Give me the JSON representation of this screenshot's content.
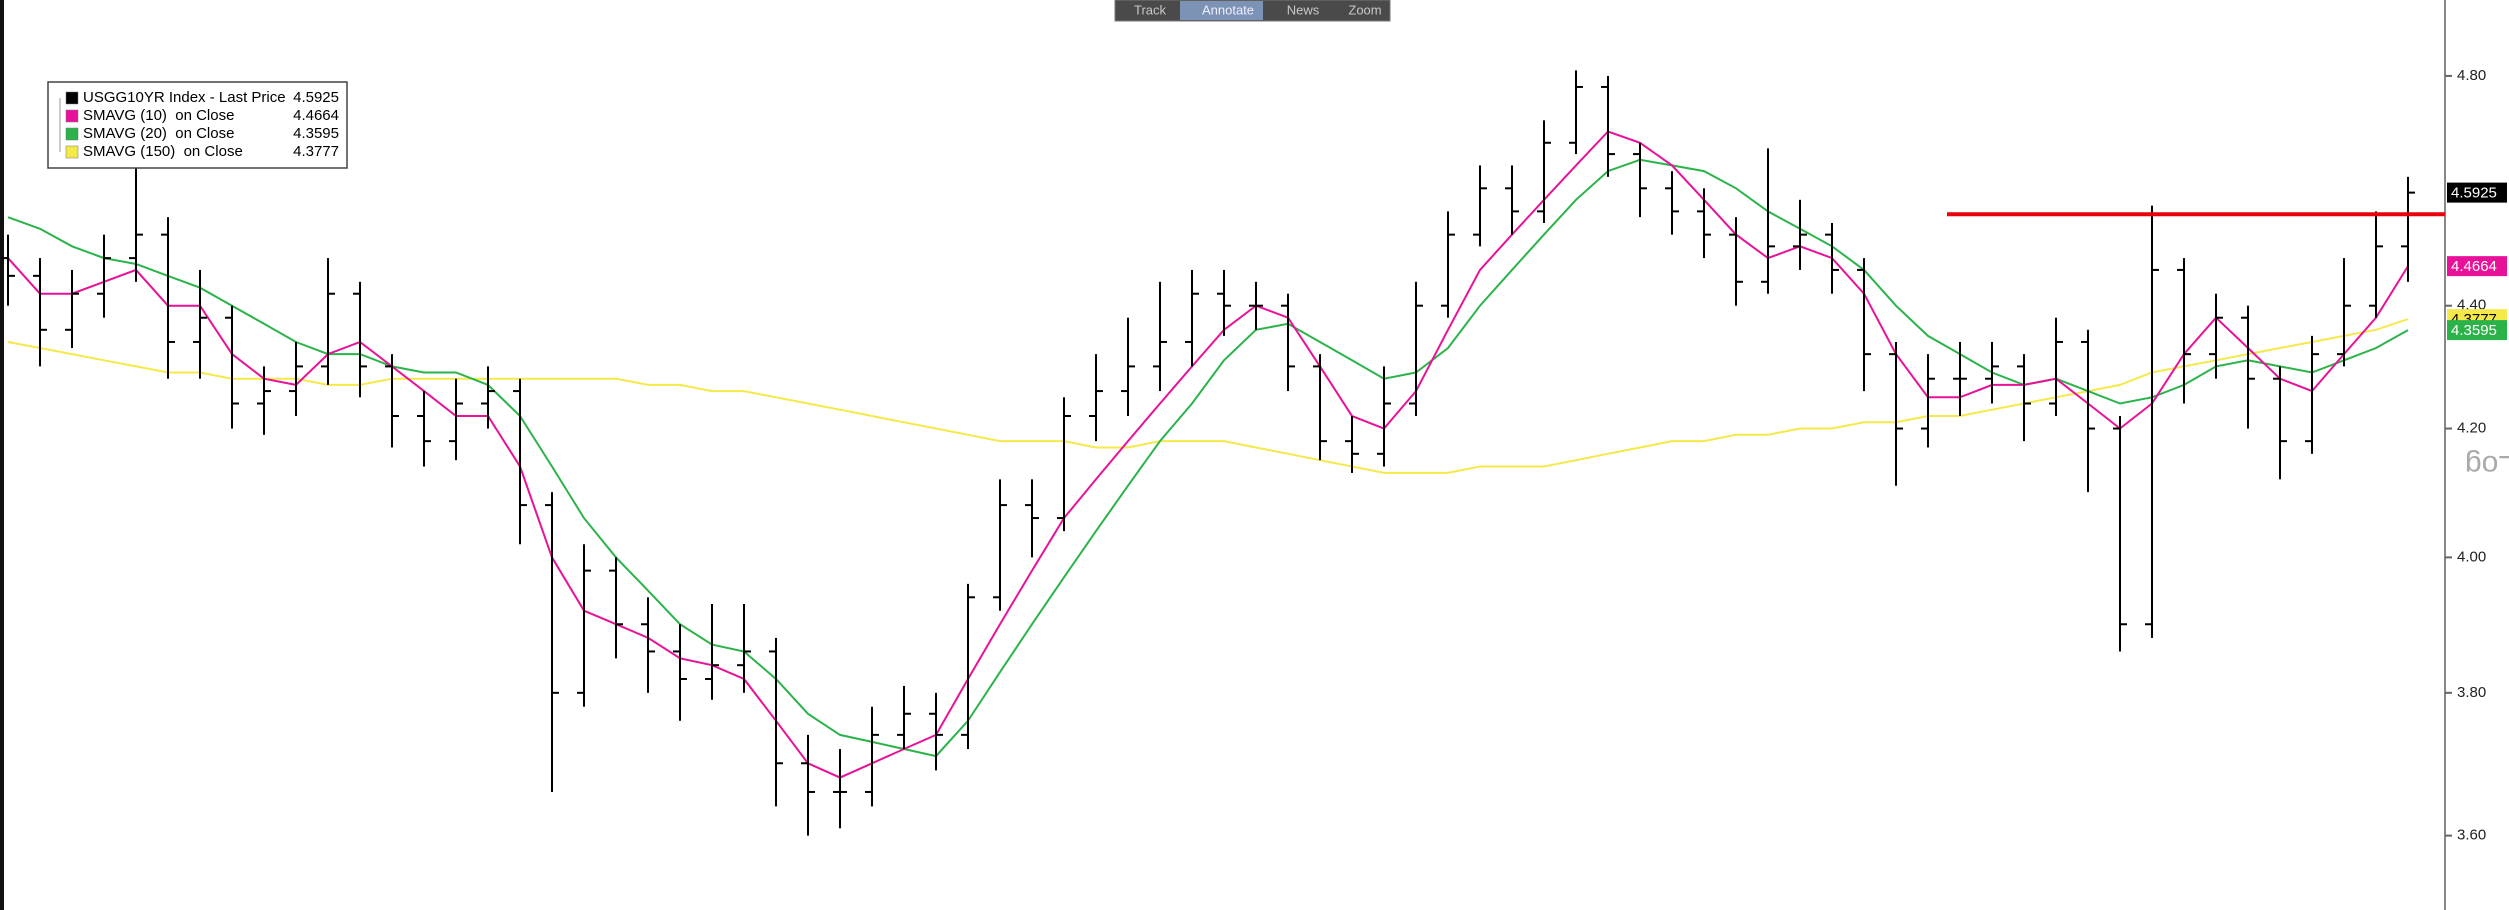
{
  "chart_data": {
    "type": "ohlc",
    "log_scale": true,
    "y_axis_title": "Log",
    "legend_position": "upper left",
    "toolbar": [
      "Track",
      "Annotate",
      "News",
      "Zoom"
    ],
    "ylim": [
      3.5,
      4.94
    ],
    "yticks": [
      {
        "value": 3.6,
        "label": "3.60"
      },
      {
        "value": 3.8,
        "label": "3.80"
      },
      {
        "value": 4.0,
        "label": "4.00"
      },
      {
        "value": 4.2,
        "label": "4.20"
      },
      {
        "value": 4.4,
        "label": "4.40"
      },
      {
        "value": 4.8,
        "label": "4.80"
      }
    ],
    "hline": {
      "value": 4.555,
      "color": "#e8000b"
    },
    "ohlc": {
      "name": "USGG10YR Index - Last Price",
      "color": "#000000",
      "last": 4.5925,
      "open": [
        4.48,
        4.45,
        4.36,
        4.42,
        4.48,
        4.52,
        4.34,
        4.38,
        4.24,
        4.26,
        4.3,
        4.42,
        4.3,
        4.22,
        4.18,
        4.24,
        4.26,
        4.08,
        3.8,
        3.98,
        3.9,
        3.86,
        3.82,
        3.84,
        3.86,
        3.7,
        3.66,
        3.66,
        3.74,
        3.77,
        3.74,
        3.94,
        4.08,
        4.06,
        4.22,
        4.26,
        4.3,
        4.34,
        4.42,
        4.4,
        4.4,
        4.3,
        4.18,
        4.16,
        4.24,
        4.4,
        4.52,
        4.6,
        4.56,
        4.68,
        4.78,
        4.66,
        4.6,
        4.56,
        4.52,
        4.44,
        4.5,
        4.52,
        4.46,
        4.32,
        4.2,
        4.28,
        4.28,
        4.3,
        4.24,
        4.34,
        4.2,
        3.9,
        4.46,
        4.32,
        4.38,
        4.28,
        4.18,
        4.32,
        4.4,
        4.5
      ],
      "high": [
        4.52,
        4.48,
        4.46,
        4.52,
        4.64,
        4.55,
        4.46,
        4.4,
        4.3,
        4.34,
        4.48,
        4.44,
        4.32,
        4.26,
        4.28,
        4.3,
        4.28,
        4.1,
        4.02,
        4.0,
        3.94,
        3.9,
        3.93,
        3.93,
        3.88,
        3.74,
        3.72,
        3.78,
        3.81,
        3.8,
        3.96,
        4.12,
        4.12,
        4.25,
        4.32,
        4.38,
        4.44,
        4.46,
        4.46,
        4.44,
        4.42,
        4.32,
        4.22,
        4.3,
        4.44,
        4.56,
        4.64,
        4.64,
        4.72,
        4.81,
        4.8,
        4.68,
        4.63,
        4.6,
        4.55,
        4.67,
        4.58,
        4.54,
        4.48,
        4.34,
        4.32,
        4.34,
        4.34,
        4.32,
        4.38,
        4.36,
        4.22,
        4.57,
        4.48,
        4.42,
        4.4,
        4.3,
        4.35,
        4.48,
        4.56,
        4.62
      ],
      "low": [
        4.4,
        4.3,
        4.33,
        4.38,
        4.44,
        4.28,
        4.28,
        4.2,
        4.19,
        4.22,
        4.27,
        4.25,
        4.17,
        4.14,
        4.15,
        4.2,
        4.02,
        3.66,
        3.78,
        3.85,
        3.8,
        3.76,
        3.79,
        3.8,
        3.64,
        3.6,
        3.61,
        3.64,
        3.72,
        3.69,
        3.72,
        3.92,
        4.0,
        4.04,
        4.18,
        4.22,
        4.26,
        4.3,
        4.35,
        4.36,
        4.26,
        4.15,
        4.13,
        4.14,
        4.22,
        4.38,
        4.5,
        4.52,
        4.54,
        4.66,
        4.62,
        4.55,
        4.52,
        4.48,
        4.4,
        4.42,
        4.46,
        4.42,
        4.26,
        4.11,
        4.17,
        4.22,
        4.24,
        4.18,
        4.22,
        4.1,
        3.86,
        3.88,
        4.24,
        4.28,
        4.2,
        4.12,
        4.16,
        4.3,
        4.38,
        4.44
      ],
      "close": [
        4.45,
        4.36,
        4.42,
        4.48,
        4.52,
        4.34,
        4.38,
        4.24,
        4.26,
        4.3,
        4.42,
        4.3,
        4.22,
        4.18,
        4.24,
        4.26,
        4.08,
        3.8,
        3.98,
        3.9,
        3.86,
        3.82,
        3.84,
        3.86,
        3.7,
        3.66,
        3.66,
        3.74,
        3.77,
        3.74,
        3.94,
        4.08,
        4.06,
        4.22,
        4.26,
        4.3,
        4.34,
        4.42,
        4.4,
        4.4,
        4.3,
        4.18,
        4.16,
        4.24,
        4.4,
        4.52,
        4.6,
        4.56,
        4.68,
        4.78,
        4.66,
        4.6,
        4.56,
        4.52,
        4.44,
        4.5,
        4.52,
        4.46,
        4.32,
        4.2,
        4.28,
        4.28,
        4.3,
        4.24,
        4.34,
        4.2,
        3.9,
        4.46,
        4.32,
        4.38,
        4.28,
        4.18,
        4.32,
        4.4,
        4.5,
        4.5925
      ]
    },
    "series": [
      {
        "name": "SMAVG (10)  on Close",
        "color": "#e8119a",
        "last": 4.4664,
        "values": [
          4.48,
          4.42,
          4.42,
          4.44,
          4.46,
          4.4,
          4.4,
          4.32,
          4.28,
          4.27,
          4.32,
          4.34,
          4.3,
          4.26,
          4.22,
          4.22,
          4.14,
          4.0,
          3.92,
          3.9,
          3.88,
          3.85,
          3.84,
          3.82,
          3.76,
          3.7,
          3.68,
          3.7,
          3.72,
          3.74,
          3.82,
          3.9,
          3.98,
          4.06,
          4.12,
          4.18,
          4.24,
          4.3,
          4.36,
          4.4,
          4.38,
          4.3,
          4.22,
          4.2,
          4.26,
          4.36,
          4.46,
          4.52,
          4.58,
          4.64,
          4.7,
          4.68,
          4.64,
          4.58,
          4.52,
          4.48,
          4.5,
          4.48,
          4.42,
          4.32,
          4.25,
          4.25,
          4.27,
          4.27,
          4.28,
          4.24,
          4.2,
          4.24,
          4.32,
          4.38,
          4.33,
          4.28,
          4.26,
          4.32,
          4.38,
          4.4664
        ]
      },
      {
        "name": "SMAVG (20)  on Close",
        "color": "#2bb34a",
        "last": 4.3595,
        "values": [
          4.55,
          4.53,
          4.5,
          4.48,
          4.47,
          4.45,
          4.43,
          4.4,
          4.37,
          4.34,
          4.32,
          4.32,
          4.3,
          4.29,
          4.29,
          4.27,
          4.22,
          4.14,
          4.06,
          4.0,
          3.95,
          3.9,
          3.87,
          3.86,
          3.82,
          3.77,
          3.74,
          3.73,
          3.72,
          3.71,
          3.76,
          3.83,
          3.9,
          3.97,
          4.04,
          4.11,
          4.18,
          4.24,
          4.31,
          4.36,
          4.37,
          4.34,
          4.31,
          4.28,
          4.29,
          4.33,
          4.4,
          4.46,
          4.52,
          4.58,
          4.63,
          4.65,
          4.64,
          4.63,
          4.6,
          4.56,
          4.53,
          4.5,
          4.46,
          4.4,
          4.35,
          4.32,
          4.29,
          4.27,
          4.28,
          4.26,
          4.24,
          4.25,
          4.27,
          4.3,
          4.31,
          4.3,
          4.29,
          4.31,
          4.33,
          4.3595
        ]
      },
      {
        "name": "SMAVG (150)  on Close",
        "color": "#f5e94a",
        "last": 4.3777,
        "values": [
          4.34,
          4.33,
          4.32,
          4.31,
          4.3,
          4.29,
          4.29,
          4.28,
          4.28,
          4.28,
          4.27,
          4.27,
          4.28,
          4.28,
          4.28,
          4.28,
          4.28,
          4.28,
          4.28,
          4.28,
          4.27,
          4.27,
          4.26,
          4.26,
          4.25,
          4.24,
          4.23,
          4.22,
          4.21,
          4.2,
          4.19,
          4.18,
          4.18,
          4.18,
          4.17,
          4.17,
          4.18,
          4.18,
          4.18,
          4.17,
          4.16,
          4.15,
          4.14,
          4.13,
          4.13,
          4.13,
          4.14,
          4.14,
          4.14,
          4.15,
          4.16,
          4.17,
          4.18,
          4.18,
          4.19,
          4.19,
          4.2,
          4.2,
          4.21,
          4.21,
          4.22,
          4.22,
          4.23,
          4.24,
          4.25,
          4.26,
          4.27,
          4.29,
          4.3,
          4.31,
          4.32,
          4.33,
          4.34,
          4.35,
          4.36,
          4.3777
        ]
      }
    ]
  }
}
